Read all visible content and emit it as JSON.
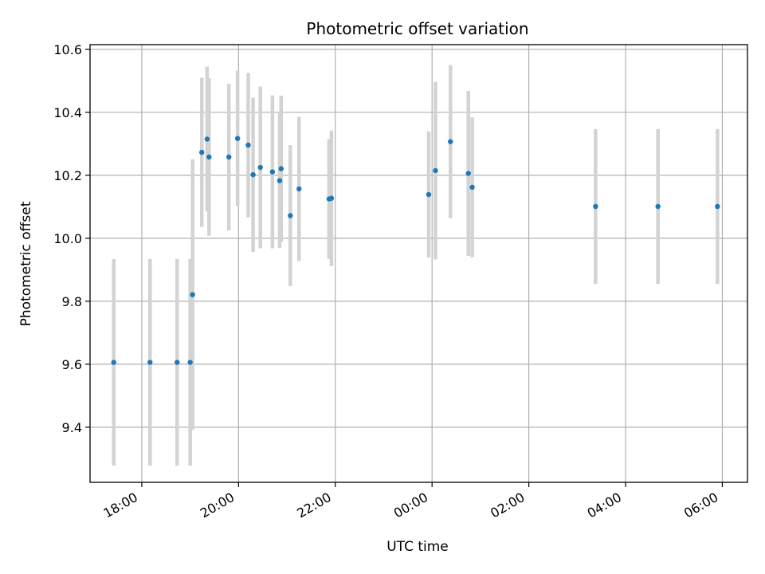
{
  "chart_data": {
    "type": "scatter",
    "title": "Photometric offset variation",
    "xlabel": "UTC time",
    "ylabel": "Photometric offset",
    "x_unit": "UTC hour (hours after 24:00 continue past 24)",
    "xlim": [
      16.93,
      30.52
    ],
    "ylim": [
      9.225,
      10.615
    ],
    "x_ticks": [
      {
        "value": 18,
        "label": "18:00"
      },
      {
        "value": 20,
        "label": "20:00"
      },
      {
        "value": 22,
        "label": "22:00"
      },
      {
        "value": 24,
        "label": "00:00"
      },
      {
        "value": 26,
        "label": "02:00"
      },
      {
        "value": 28,
        "label": "04:00"
      },
      {
        "value": 30,
        "label": "06:00"
      }
    ],
    "y_ticks": [
      {
        "value": 9.4,
        "label": "9.4"
      },
      {
        "value": 9.6,
        "label": "9.6"
      },
      {
        "value": 9.8,
        "label": "9.8"
      },
      {
        "value": 10.0,
        "label": "10.0"
      },
      {
        "value": 10.2,
        "label": "10.2"
      },
      {
        "value": 10.4,
        "label": "10.4"
      },
      {
        "value": 10.6,
        "label": "10.6"
      }
    ],
    "grid": true,
    "colors": {
      "point": "#1f77b4",
      "errorbar": "#d3d3d3",
      "grid": "#b0b0b0"
    },
    "points": [
      {
        "x": 17.42,
        "y": 9.606,
        "err": 0.328
      },
      {
        "x": 18.17,
        "y": 9.606,
        "err": 0.328
      },
      {
        "x": 18.73,
        "y": 9.606,
        "err": 0.328
      },
      {
        "x": 19.0,
        "y": 9.606,
        "err": 0.328
      },
      {
        "x": 19.05,
        "y": 9.821,
        "err": 0.43
      },
      {
        "x": 19.24,
        "y": 10.273,
        "err": 0.237
      },
      {
        "x": 19.35,
        "y": 10.315,
        "err": 0.23
      },
      {
        "x": 19.39,
        "y": 10.258,
        "err": 0.25
      },
      {
        "x": 19.8,
        "y": 10.258,
        "err": 0.233
      },
      {
        "x": 19.98,
        "y": 10.317,
        "err": 0.215
      },
      {
        "x": 20.2,
        "y": 10.296,
        "err": 0.229
      },
      {
        "x": 20.3,
        "y": 10.202,
        "err": 0.245
      },
      {
        "x": 20.45,
        "y": 10.225,
        "err": 0.257
      },
      {
        "x": 20.7,
        "y": 10.211,
        "err": 0.243
      },
      {
        "x": 20.85,
        "y": 10.183,
        "err": 0.214
      },
      {
        "x": 20.88,
        "y": 10.221,
        "err": 0.232
      },
      {
        "x": 21.07,
        "y": 10.072,
        "err": 0.224
      },
      {
        "x": 21.25,
        "y": 10.157,
        "err": 0.229
      },
      {
        "x": 21.87,
        "y": 10.125,
        "err": 0.19
      },
      {
        "x": 21.92,
        "y": 10.127,
        "err": 0.215
      },
      {
        "x": 23.93,
        "y": 10.139,
        "err": 0.2
      },
      {
        "x": 24.07,
        "y": 10.215,
        "err": 0.282
      },
      {
        "x": 24.38,
        "y": 10.307,
        "err": 0.243
      },
      {
        "x": 24.75,
        "y": 10.206,
        "err": 0.262
      },
      {
        "x": 24.83,
        "y": 10.162,
        "err": 0.222
      },
      {
        "x": 27.38,
        "y": 10.101,
        "err": 0.246
      },
      {
        "x": 28.67,
        "y": 10.101,
        "err": 0.246
      },
      {
        "x": 29.9,
        "y": 10.101,
        "err": 0.246
      }
    ]
  }
}
